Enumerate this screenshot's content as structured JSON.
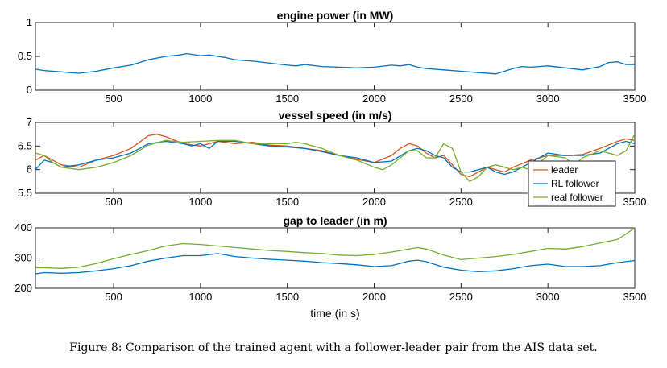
{
  "caption": "Figure 8: Comparison of the trained agent with a follower-leader pair from the AIS data set.",
  "colors": {
    "leader": "#d95319",
    "rl_follower": "#0072bd",
    "real_follower": "#77ac30"
  },
  "chart_data": [
    {
      "type": "line",
      "title": "engine power (in MW)",
      "xlabel": "",
      "xlim": [
        50,
        3500
      ],
      "ylim": [
        0,
        1
      ],
      "xticks": [
        500,
        1000,
        1500,
        2000,
        2500,
        3000,
        3500
      ],
      "yticks": [
        0,
        0.5,
        1
      ],
      "ytick_labels": [
        "0",
        "0.5",
        "1"
      ],
      "series": [
        {
          "color": "#0072bd",
          "x": [
            50,
            100,
            200,
            250,
            300,
            400,
            500,
            600,
            700,
            800,
            880,
            920,
            950,
            1000,
            1050,
            1100,
            1150,
            1200,
            1300,
            1400,
            1500,
            1550,
            1600,
            1700,
            1800,
            1900,
            2000,
            2100,
            2150,
            2200,
            2250,
            2300,
            2400,
            2500,
            2600,
            2700,
            2750,
            2800,
            2850,
            2900,
            2950,
            3000,
            3100,
            3200,
            3300,
            3350,
            3400,
            3450,
            3500
          ],
          "y": [
            0.31,
            0.29,
            0.27,
            0.26,
            0.25,
            0.28,
            0.33,
            0.37,
            0.45,
            0.5,
            0.52,
            0.54,
            0.53,
            0.51,
            0.52,
            0.5,
            0.48,
            0.45,
            0.43,
            0.4,
            0.37,
            0.36,
            0.38,
            0.35,
            0.34,
            0.33,
            0.34,
            0.37,
            0.36,
            0.38,
            0.34,
            0.32,
            0.3,
            0.28,
            0.26,
            0.24,
            0.28,
            0.32,
            0.35,
            0.34,
            0.35,
            0.36,
            0.33,
            0.3,
            0.35,
            0.41,
            0.42,
            0.38,
            0.38
          ]
        }
      ]
    },
    {
      "type": "line",
      "title": "vessel speed (in m/s)",
      "xlabel": "",
      "xlim": [
        50,
        3500
      ],
      "ylim": [
        5.5,
        7
      ],
      "xticks": [
        500,
        1000,
        1500,
        2000,
        2500,
        3000,
        3500
      ],
      "yticks": [
        5.5,
        6,
        6.5,
        7
      ],
      "ytick_labels": [
        "5.5",
        "6",
        "6.5",
        "7"
      ],
      "legend": {
        "placement": "bottom-right",
        "entries": [
          "leader",
          "RL follower",
          "real follower"
        ]
      },
      "series": [
        {
          "name": "leader",
          "color": "#d95319",
          "x": [
            50,
            100,
            150,
            200,
            300,
            400,
            500,
            600,
            700,
            750,
            800,
            900,
            1000,
            1100,
            1200,
            1300,
            1400,
            1500,
            1600,
            1700,
            1800,
            1900,
            2000,
            2100,
            2150,
            2200,
            2250,
            2300,
            2350,
            2400,
            2450,
            2500,
            2550,
            2600,
            2650,
            2700,
            2750,
            2800,
            2900,
            3000,
            3100,
            3200,
            3300,
            3400,
            3450,
            3500
          ],
          "y": [
            6.2,
            6.3,
            6.2,
            6.1,
            6.05,
            6.2,
            6.3,
            6.45,
            6.72,
            6.75,
            6.7,
            6.55,
            6.5,
            6.6,
            6.55,
            6.58,
            6.52,
            6.5,
            6.45,
            6.4,
            6.3,
            6.22,
            6.15,
            6.3,
            6.45,
            6.55,
            6.5,
            6.35,
            6.25,
            6.3,
            6.1,
            5.9,
            5.85,
            5.95,
            6.05,
            6.0,
            5.95,
            6.05,
            6.2,
            6.3,
            6.3,
            6.32,
            6.45,
            6.6,
            6.65,
            6.62
          ]
        },
        {
          "name": "RL follower",
          "color": "#0072bd",
          "x": [
            50,
            100,
            150,
            200,
            300,
            400,
            500,
            600,
            700,
            800,
            900,
            950,
            1000,
            1050,
            1100,
            1200,
            1300,
            1400,
            1500,
            1600,
            1700,
            1800,
            1900,
            2000,
            2100,
            2200,
            2250,
            2300,
            2350,
            2400,
            2450,
            2500,
            2550,
            2600,
            2650,
            2700,
            2750,
            2800,
            2900,
            3000,
            3100,
            3200,
            3300,
            3400,
            3450,
            3500
          ],
          "y": [
            6.0,
            6.2,
            6.15,
            6.05,
            6.1,
            6.2,
            6.25,
            6.35,
            6.55,
            6.6,
            6.55,
            6.5,
            6.55,
            6.45,
            6.6,
            6.6,
            6.55,
            6.5,
            6.48,
            6.45,
            6.38,
            6.3,
            6.25,
            6.15,
            6.18,
            6.4,
            6.45,
            6.4,
            6.3,
            6.25,
            6.05,
            5.95,
            5.95,
            6.0,
            6.05,
            5.95,
            5.9,
            5.95,
            6.15,
            6.35,
            6.3,
            6.3,
            6.35,
            6.55,
            6.6,
            6.55
          ]
        },
        {
          "name": "real follower",
          "color": "#77ac30",
          "x": [
            50,
            100,
            150,
            200,
            300,
            400,
            500,
            600,
            700,
            800,
            900,
            1000,
            1100,
            1200,
            1300,
            1400,
            1500,
            1550,
            1600,
            1700,
            1800,
            1900,
            2000,
            2050,
            2100,
            2200,
            2250,
            2300,
            2350,
            2400,
            2450,
            2500,
            2550,
            2600,
            2650,
            2700,
            2800,
            2850,
            2900,
            3000,
            3100,
            3150,
            3200,
            3300,
            3400,
            3450,
            3500
          ],
          "y": [
            6.35,
            6.3,
            6.15,
            6.05,
            6.0,
            6.05,
            6.15,
            6.3,
            6.52,
            6.62,
            6.58,
            6.6,
            6.62,
            6.62,
            6.55,
            6.55,
            6.55,
            6.58,
            6.55,
            6.45,
            6.3,
            6.2,
            6.05,
            6.0,
            6.1,
            6.4,
            6.4,
            6.25,
            6.25,
            6.55,
            6.45,
            5.95,
            5.75,
            5.85,
            6.05,
            6.1,
            6.0,
            6.05,
            6.0,
            6.3,
            6.25,
            6.1,
            6.25,
            6.4,
            6.3,
            6.4,
            6.75
          ]
        }
      ]
    },
    {
      "type": "line",
      "title": "gap to leader (in m)",
      "xlabel": "time (in s)",
      "xlim": [
        50,
        3500
      ],
      "ylim": [
        200,
        400
      ],
      "xticks": [
        500,
        1000,
        1500,
        2000,
        2500,
        3000,
        3500
      ],
      "yticks": [
        200,
        300,
        400
      ],
      "ytick_labels": [
        "200",
        "300",
        "400"
      ],
      "series": [
        {
          "color": "#0072bd",
          "x": [
            50,
            100,
            200,
            300,
            400,
            500,
            600,
            700,
            800,
            900,
            1000,
            1100,
            1200,
            1300,
            1400,
            1500,
            1600,
            1700,
            1800,
            1900,
            2000,
            2100,
            2200,
            2250,
            2300,
            2400,
            2500,
            2600,
            2700,
            2800,
            2900,
            3000,
            3100,
            3200,
            3300,
            3400,
            3500
          ],
          "y": [
            248,
            252,
            250,
            252,
            258,
            265,
            275,
            290,
            300,
            308,
            308,
            315,
            305,
            300,
            296,
            293,
            290,
            285,
            282,
            278,
            272,
            275,
            290,
            293,
            288,
            270,
            260,
            255,
            258,
            265,
            275,
            280,
            272,
            272,
            275,
            285,
            292
          ]
        },
        {
          "color": "#77ac30",
          "x": [
            50,
            100,
            200,
            300,
            400,
            500,
            600,
            700,
            800,
            900,
            1000,
            1100,
            1200,
            1300,
            1400,
            1500,
            1600,
            1700,
            1800,
            1900,
            2000,
            2100,
            2200,
            2250,
            2300,
            2400,
            2500,
            2600,
            2700,
            2800,
            2900,
            3000,
            3100,
            3200,
            3300,
            3400,
            3450,
            3500
          ],
          "y": [
            268,
            268,
            266,
            270,
            282,
            298,
            312,
            325,
            340,
            348,
            345,
            340,
            335,
            330,
            325,
            322,
            318,
            315,
            310,
            308,
            312,
            320,
            330,
            335,
            330,
            310,
            295,
            300,
            305,
            312,
            322,
            332,
            330,
            338,
            350,
            362,
            380,
            400
          ]
        }
      ]
    }
  ]
}
